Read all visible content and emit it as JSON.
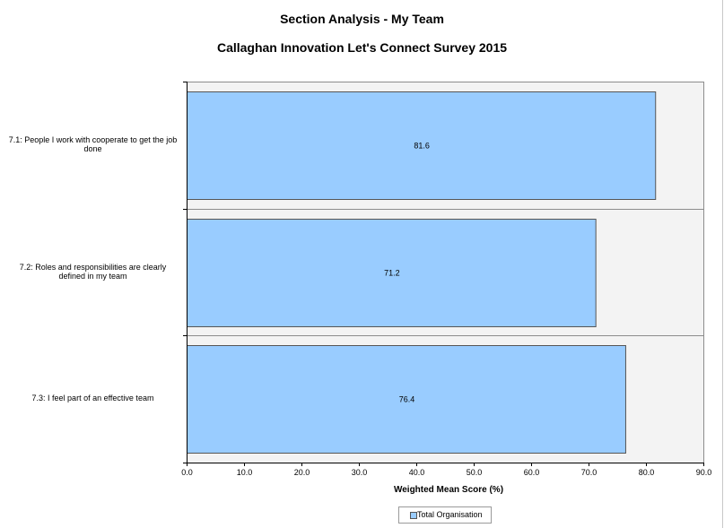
{
  "chart_data": {
    "type": "bar",
    "orientation": "horizontal",
    "title": "Section Analysis - My Team",
    "subtitle": "Callaghan Innovation Let's Connect Survey 2015",
    "categories": [
      "7.1: People I work with cooperate to get the job done",
      "7.2: Roles and responsibilities are clearly defined in my team",
      "7.3: I feel part of an effective team"
    ],
    "series": [
      {
        "name": "Total Organisation",
        "values": [
          81.6,
          71.2,
          76.4
        ]
      }
    ],
    "data_labels": [
      "81.6",
      "71.2",
      "76.4"
    ],
    "xlabel": "Weighted Mean Score (%)",
    "ylabel": "",
    "xlim": [
      0,
      90
    ],
    "xticks": [
      "0.0",
      "10.0",
      "20.0",
      "30.0",
      "40.0",
      "50.0",
      "60.0",
      "70.0",
      "80.0",
      "90.0"
    ],
    "legend_position": "bottom-center",
    "colors": {
      "bar": "#99ccff",
      "bar_border": "#555555",
      "plot_bg": "#f3f3f3",
      "band_line": "#8c8c8c"
    }
  }
}
